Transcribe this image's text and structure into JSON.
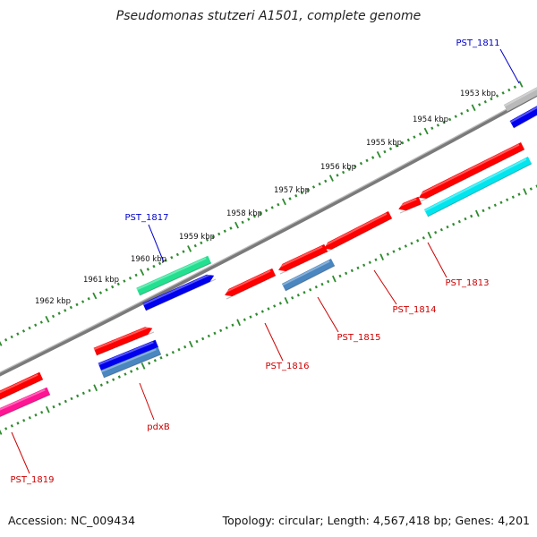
{
  "title": "Pseudomonas stutzeri A1501, complete genome",
  "footer": {
    "accession": "Accession: NC_009434",
    "summary": "Topology: circular; Length: 4,567,418 bp; Genes: 4,201"
  },
  "colors": {
    "backbone": "#7a7a7a",
    "tick": "#2e8b2e",
    "label_blue": "#0000cc",
    "label_red": "#cc0000",
    "red": "#ff0000",
    "blue": "#0000ee",
    "cyan": "#00e5ee",
    "green": "#22e08f",
    "steel": "#4a86c0",
    "magenta": "#ff1493",
    "gray": "#b9b9b9"
  },
  "scale": {
    "ticks": [
      {
        "label": "1953 kbp"
      },
      {
        "label": "1954 kbp"
      },
      {
        "label": "1955 kbp"
      },
      {
        "label": "1956 kbp"
      },
      {
        "label": "1957 kbp"
      },
      {
        "label": "1958 kbp"
      },
      {
        "label": "1959 kbp"
      },
      {
        "label": "1960 kbp"
      },
      {
        "label": "1961 kbp"
      },
      {
        "label": "1962 kbp"
      }
    ]
  },
  "gene_labels": [
    {
      "text": "PST_1811",
      "color": "blue"
    },
    {
      "text": "PST_1817",
      "color": "blue"
    },
    {
      "text": "PST_1813",
      "color": "red"
    },
    {
      "text": "PST_1814",
      "color": "red"
    },
    {
      "text": "PST_1815",
      "color": "red"
    },
    {
      "text": "PST_1816",
      "color": "red"
    },
    {
      "text": "pdxB",
      "color": "red"
    },
    {
      "text": "PST_1819",
      "color": "red"
    }
  ]
}
